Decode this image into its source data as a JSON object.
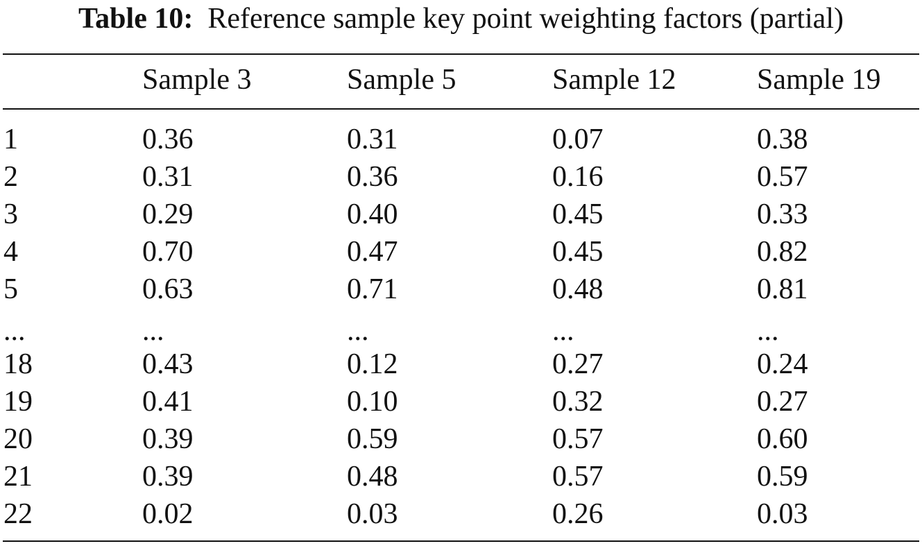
{
  "caption": {
    "label": "Table 10:",
    "text": "Reference sample key point weighting factors (partial)"
  },
  "table": {
    "headers": [
      "",
      "Sample 3",
      "Sample 5",
      "Sample 12",
      "Sample 19"
    ],
    "rows": [
      [
        "1",
        "0.36",
        "0.31",
        "0.07",
        "0.38"
      ],
      [
        "2",
        "0.31",
        "0.36",
        "0.16",
        "0.57"
      ],
      [
        "3",
        "0.29",
        "0.40",
        "0.45",
        "0.33"
      ],
      [
        "4",
        "0.70",
        "0.47",
        "0.45",
        "0.82"
      ],
      [
        "5",
        "0.63",
        "0.71",
        "0.48",
        "0.81"
      ],
      [
        "...",
        "...",
        "...",
        "...",
        "..."
      ],
      [
        "18",
        "0.43",
        "0.12",
        "0.27",
        "0.24"
      ],
      [
        "19",
        "0.41",
        "0.10",
        "0.32",
        "0.27"
      ],
      [
        "20",
        "0.39",
        "0.59",
        "0.57",
        "0.60"
      ],
      [
        "21",
        "0.39",
        "0.48",
        "0.57",
        "0.59"
      ],
      [
        "22",
        "0.02",
        "0.03",
        "0.26",
        "0.03"
      ]
    ]
  }
}
